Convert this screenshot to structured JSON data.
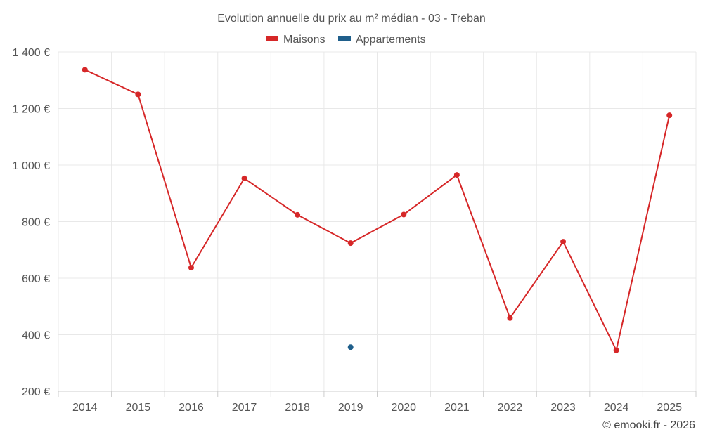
{
  "chart_data": {
    "type": "line",
    "title": "Evolution annuelle du prix au m² médian - 03 - Treban",
    "categories": [
      "2014",
      "2015",
      "2016",
      "2017",
      "2018",
      "2019",
      "2020",
      "2021",
      "2022",
      "2023",
      "2024",
      "2025"
    ],
    "series": [
      {
        "name": "Maisons",
        "color": "#d62728",
        "values": [
          1337,
          1250,
          637,
          953,
          824,
          724,
          825,
          965,
          459,
          729,
          345,
          1176
        ]
      },
      {
        "name": "Appartements",
        "color": "#1f5f8b",
        "values": [
          null,
          null,
          null,
          null,
          null,
          356,
          null,
          null,
          null,
          null,
          null,
          null
        ]
      }
    ],
    "ylim": [
      200,
      1400
    ],
    "yticks": [
      200,
      400,
      600,
      800,
      1000,
      1200,
      1400
    ],
    "ytick_labels": [
      "200 €",
      "400 €",
      "600 €",
      "800 €",
      "1 000 €",
      "1 200 €",
      "1 400 €"
    ],
    "xlabel": "",
    "ylabel": "",
    "grid": true,
    "legend_position": "top-center",
    "credit": "© emooki.fr - 2026"
  }
}
